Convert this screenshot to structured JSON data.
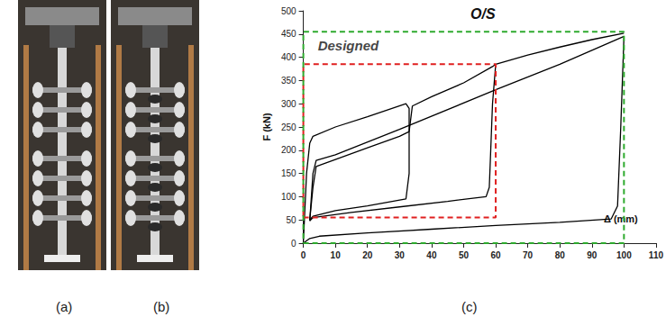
{
  "chart_data": {
    "type": "line",
    "title": "O/S",
    "x_label": "Δ (mm)",
    "y_label": "F (kN)",
    "xlim": [
      0,
      110
    ],
    "xticks": [
      0,
      10,
      20,
      30,
      40,
      50,
      60,
      70,
      80,
      90,
      100,
      110
    ],
    "ylim": [
      0,
      500
    ],
    "yticks": [
      0,
      50,
      100,
      150,
      200,
      250,
      300,
      350,
      400,
      450,
      500
    ],
    "grid": false,
    "series": [
      {
        "color": "#000000",
        "line_style": "solid",
        "x": [
          0,
          1,
          2,
          3,
          10,
          20,
          32,
          33,
          33,
          32,
          20,
          10,
          3,
          2
        ],
        "values": [
          0,
          150,
          215,
          230,
          250,
          272,
          300,
          290,
          150,
          95,
          80,
          70,
          58,
          50
        ]
      },
      {
        "color": "#000000",
        "line_style": "solid",
        "x": [
          2,
          3,
          4,
          10,
          20,
          30,
          33,
          34,
          40,
          50,
          59,
          60,
          59,
          58,
          57,
          45,
          30,
          15,
          3,
          2
        ],
        "values": [
          50,
          120,
          165,
          180,
          205,
          230,
          240,
          295,
          315,
          345,
          380,
          385,
          300,
          120,
          100,
          90,
          78,
          66,
          55,
          48
        ]
      },
      {
        "color": "#000000",
        "line_style": "solid",
        "x": [
          2,
          3,
          4,
          10,
          30,
          60,
          80,
          95,
          100,
          99,
          98,
          96,
          80,
          60,
          40,
          20,
          5,
          2,
          0
        ],
        "values": [
          48,
          150,
          178,
          190,
          245,
          330,
          385,
          430,
          445,
          250,
          80,
          52,
          45,
          38,
          30,
          22,
          15,
          10,
          0
        ]
      },
      {
        "color": "#000000",
        "line_style": "solid",
        "x": [
          60,
          70,
          80,
          90,
          100
        ],
        "values": [
          385,
          405,
          422,
          438,
          452
        ]
      },
      {
        "color": "#e02020",
        "line_style": "dashed",
        "x": [
          0,
          60,
          60,
          0,
          0
        ],
        "values": [
          55,
          55,
          385,
          385,
          55
        ]
      },
      {
        "color": "#2eaa2e",
        "line_style": "dashed",
        "x": [
          0,
          100,
          100,
          0,
          0
        ],
        "values": [
          0,
          0,
          455,
          455,
          0
        ]
      }
    ],
    "annotations": [
      {
        "text": "Designed",
        "x": 14,
        "y": 425
      }
    ]
  },
  "panel_labels": [
    "(a)",
    "(b)",
    "(c)"
  ]
}
